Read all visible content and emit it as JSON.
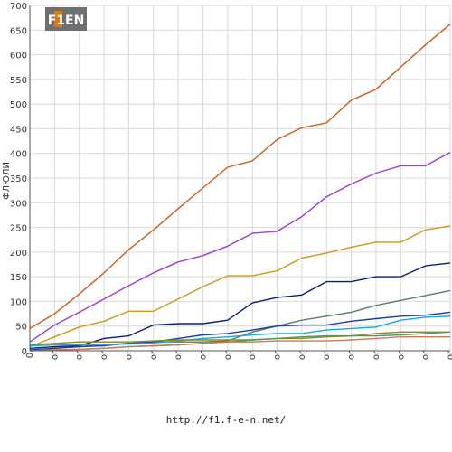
{
  "footer": {
    "url": "http://f1.f-e-n.net/"
  },
  "logo": {
    "text": "F1EN"
  },
  "chart_data": {
    "type": "line",
    "ylabel": "ФЛЮЛИ",
    "ylim": [
      0,
      700
    ],
    "yticks": [
      0,
      50,
      100,
      150,
      200,
      250,
      300,
      350,
      400,
      450,
      500,
      550,
      600,
      650,
      700
    ],
    "x": [
      "0",
      "or",
      "or",
      "or",
      "or",
      "or",
      "or",
      "or",
      "or",
      "or",
      "or",
      "or",
      "or",
      "or",
      "or",
      "or",
      "or",
      "or"
    ],
    "grid": true,
    "legend": "none",
    "series": [
      {
        "color": "#c8601e",
        "values": [
          45,
          75,
          115,
          158,
          205,
          245,
          288,
          330,
          372,
          385,
          428,
          452,
          462,
          508,
          530,
          575,
          620,
          662
        ]
      },
      {
        "color": "#9b3fd0",
        "values": [
          18,
          52,
          78,
          105,
          132,
          158,
          180,
          193,
          212,
          238,
          242,
          272,
          312,
          338,
          360,
          375,
          375,
          402
        ]
      },
      {
        "color": "#c89a1e",
        "values": [
          8,
          28,
          48,
          60,
          80,
          80,
          105,
          130,
          152,
          152,
          162,
          188,
          198,
          210,
          220,
          220,
          245,
          253
        ]
      },
      {
        "color": "#0a1e78",
        "values": [
          5,
          8,
          10,
          25,
          30,
          52,
          55,
          55,
          62,
          97,
          108,
          113,
          140,
          140,
          150,
          150,
          172,
          178
        ]
      },
      {
        "color": "#5a7f62",
        "values": [
          0,
          5,
          8,
          12,
          15,
          18,
          18,
          18,
          20,
          38,
          50,
          62,
          70,
          78,
          92,
          102,
          112,
          122
        ]
      },
      {
        "color": "#1a3fa0",
        "values": [
          2,
          5,
          8,
          10,
          15,
          18,
          25,
          32,
          35,
          42,
          50,
          52,
          52,
          60,
          65,
          70,
          72,
          78
        ]
      },
      {
        "color": "#1aa8d8",
        "values": [
          10,
          12,
          12,
          12,
          14,
          16,
          20,
          25,
          28,
          32,
          35,
          35,
          42,
          45,
          48,
          62,
          68,
          70
        ]
      },
      {
        "color": "#8a8a1e",
        "values": [
          12,
          15,
          18,
          18,
          18,
          20,
          22,
          22,
          22,
          22,
          25,
          25,
          28,
          30,
          35,
          38,
          38,
          38
        ]
      },
      {
        "color": "#4a9a5a",
        "values": [
          0,
          2,
          3,
          5,
          8,
          10,
          12,
          15,
          18,
          22,
          25,
          28,
          30,
          30,
          30,
          32,
          35,
          38
        ]
      },
      {
        "color": "#c87a5a",
        "values": [
          0,
          2,
          3,
          5,
          8,
          10,
          12,
          15,
          18,
          18,
          20,
          20,
          20,
          22,
          25,
          28,
          28,
          28
        ]
      }
    ]
  }
}
